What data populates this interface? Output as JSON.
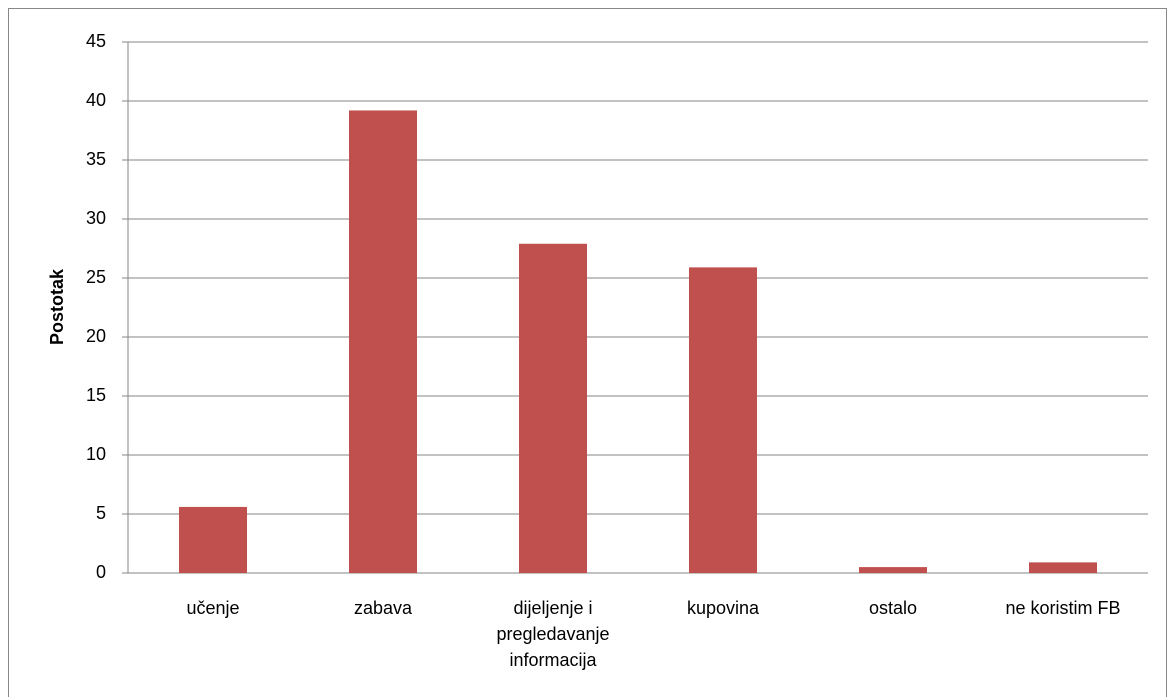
{
  "chart_data": {
    "type": "bar",
    "y_label": "Postotak",
    "categories": [
      "učenje",
      "zabava",
      "dijeljenje i pregledavanje informacija",
      "kupovina",
      "ostalo",
      "ne koristim FB"
    ],
    "values": [
      5.6,
      39.2,
      27.9,
      25.9,
      0.5,
      0.9
    ],
    "color": "#c0504d",
    "ylim": [
      0,
      45
    ],
    "yticks": [
      0,
      5,
      10,
      15,
      20,
      25,
      30,
      35,
      40,
      45
    ],
    "grid": true
  }
}
